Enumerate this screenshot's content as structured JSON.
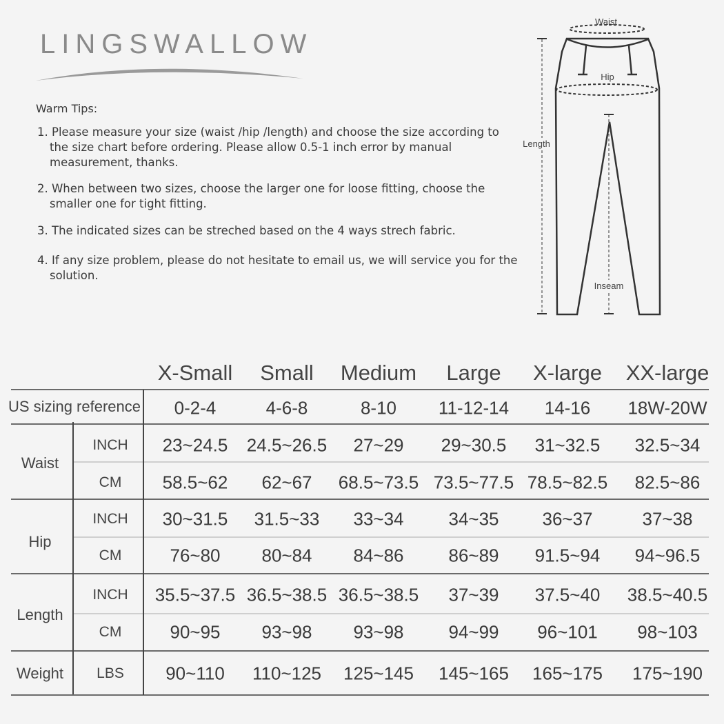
{
  "brand": "LINGSWALLOW",
  "tips": {
    "title": "Warm Tips:",
    "items": [
      "1. Please measure your size (waist /hip /length) and choose the size according to the size chart before ordering. Please allow 0.5-1 inch error by manual measurement, thanks.",
      "2. When between two sizes, choose the larger one for loose fitting, choose the smaller one for tight fitting.",
      "3. The indicated sizes can be streched based on the 4 ways strech fabric.",
      "4. If any size problem, please do not hesitate to email us, we will service you for the solution."
    ]
  },
  "diagram": {
    "waist": "Waist",
    "hip": "Hip",
    "length": "Length",
    "inseam": "Inseam"
  },
  "table": {
    "sizes": [
      "X-Small",
      "Small",
      "Medium",
      "Large",
      "X-large",
      "XX-large"
    ],
    "us_label": "US sizing reference",
    "us": [
      "0-2-4",
      "4-6-8",
      "8-10",
      "11-12-14",
      "14-16",
      "18W-20W"
    ],
    "groups": [
      {
        "label": "Waist",
        "rows": [
          {
            "unit": "INCH",
            "values": [
              "23~24.5",
              "24.5~26.5",
              "27~29",
              "29~30.5",
              "31~32.5",
              "32.5~34"
            ]
          },
          {
            "unit": "CM",
            "values": [
              "58.5~62",
              "62~67",
              "68.5~73.5",
              "73.5~77.5",
              "78.5~82.5",
              "82.5~86"
            ]
          }
        ]
      },
      {
        "label": "Hip",
        "rows": [
          {
            "unit": "INCH",
            "values": [
              "30~31.5",
              "31.5~33",
              "33~34",
              "34~35",
              "36~37",
              "37~38"
            ]
          },
          {
            "unit": "CM",
            "values": [
              "76~80",
              "80~84",
              "84~86",
              "86~89",
              "91.5~94",
              "94~96.5"
            ]
          }
        ]
      },
      {
        "label": "Length",
        "rows": [
          {
            "unit": "INCH",
            "values": [
              "35.5~37.5",
              "36.5~38.5",
              "36.5~38.5",
              "37~39",
              "37.5~40",
              "38.5~40.5"
            ]
          },
          {
            "unit": "CM",
            "values": [
              "90~95",
              "93~98",
              "93~98",
              "94~99",
              "96~101",
              "98~103"
            ]
          }
        ]
      },
      {
        "label": "Weight",
        "rows": [
          {
            "unit": "LBS",
            "values": [
              "90~110",
              "110~125",
              "125~145",
              "145~165",
              "165~175",
              "175~190"
            ]
          }
        ]
      }
    ]
  }
}
